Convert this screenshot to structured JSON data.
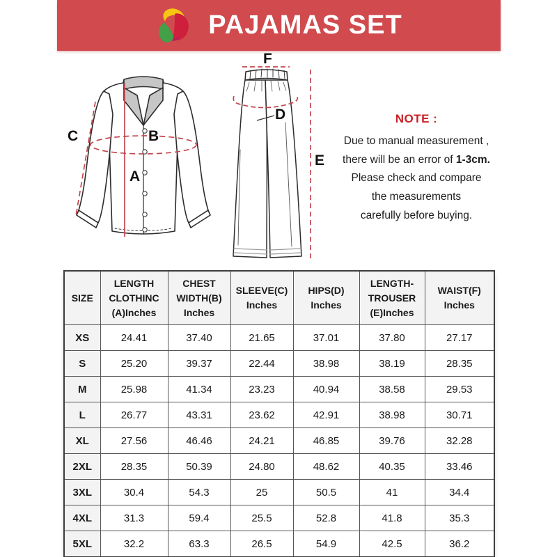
{
  "header": {
    "title": "PAJAMAS SET",
    "banner_color": "#d04a4e",
    "logo_colors": {
      "yellow": "#f7c512",
      "green": "#42a049",
      "red": "#ce1f3c",
      "magenta": "#b01e62"
    }
  },
  "diagram": {
    "annotation_color": "#c4474e",
    "labels": {
      "A": "A",
      "B": "B",
      "C": "C",
      "D": "D",
      "E": "E",
      "F": "F"
    }
  },
  "note": {
    "title": "NOTE :",
    "title_color": "#c92127",
    "line1": "Due to manual measurement ,",
    "line2_prefix": "there will be an error of ",
    "line2_bold": "1-3cm.",
    "line3": "Please check and compare",
    "line4": "the measurements",
    "line5": "carefully before buying."
  },
  "table": {
    "columns": [
      "SIZE",
      "LENGTH\nCLOTHINC\n(A)Inches",
      "CHEST\nWIDTH(B)\nInches",
      "SLEEVE(C)\nInches",
      "HIPS(D)\nInches",
      "LENGTH-\nTROUSER\n(E)Inches",
      "WAIST(F)\nInches"
    ],
    "rows": [
      {
        "size": "XS",
        "values": [
          "24.41",
          "37.40",
          "21.65",
          "37.01",
          "37.80",
          "27.17"
        ]
      },
      {
        "size": "S",
        "values": [
          "25.20",
          "39.37",
          "22.44",
          "38.98",
          "38.19",
          "28.35"
        ]
      },
      {
        "size": "M",
        "values": [
          "25.98",
          "41.34",
          "23.23",
          "40.94",
          "38.58",
          "29.53"
        ]
      },
      {
        "size": "L",
        "values": [
          "26.77",
          "43.31",
          "23.62",
          "42.91",
          "38.98",
          "30.71"
        ]
      },
      {
        "size": "XL",
        "values": [
          "27.56",
          "46.46",
          "24.21",
          "46.85",
          "39.76",
          "32.28"
        ]
      },
      {
        "size": "2XL",
        "values": [
          "28.35",
          "50.39",
          "24.80",
          "48.62",
          "40.35",
          "33.46"
        ]
      },
      {
        "size": "3XL",
        "values": [
          "30.4",
          "54.3",
          "25",
          "50.5",
          "41",
          "34.4"
        ]
      },
      {
        "size": "4XL",
        "values": [
          "31.3",
          "59.4",
          "25.5",
          "52.8",
          "41.8",
          "35.3"
        ]
      },
      {
        "size": "5XL",
        "values": [
          "32.2",
          "63.3",
          "26.5",
          "54.9",
          "42.5",
          "36.2"
        ]
      }
    ]
  }
}
